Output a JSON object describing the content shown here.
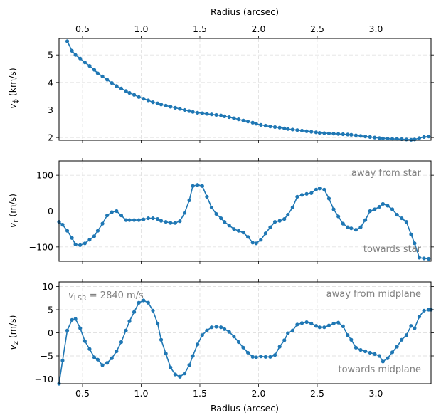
{
  "chart_data": [
    {
      "type": "line",
      "id": "vphi",
      "xlabel_top": "Radius (arcsec)",
      "ylabel_main": "v",
      "ylabel_sub": "ϕ",
      "ylabel_unit": " (km/s)",
      "xlim": [
        0.3,
        3.47
      ],
      "ylim": [
        1.9,
        5.6
      ],
      "xticks": [
        0.5,
        1.0,
        1.5,
        2.0,
        2.5,
        3.0
      ],
      "xtick_labels": [
        "0.5",
        "1.0",
        "1.5",
        "2.0",
        "2.5",
        "3.0"
      ],
      "yticks": [
        2,
        3,
        4,
        5
      ],
      "ytick_labels": [
        "2",
        "3",
        "4",
        "5"
      ],
      "grid": true,
      "color": "#1f77b4",
      "x": [
        0.37,
        0.41,
        0.44,
        0.48,
        0.52,
        0.56,
        0.6,
        0.63,
        0.67,
        0.71,
        0.75,
        0.79,
        0.83,
        0.87,
        0.9,
        0.94,
        0.98,
        1.02,
        1.06,
        1.1,
        1.14,
        1.17,
        1.21,
        1.25,
        1.29,
        1.33,
        1.37,
        1.41,
        1.44,
        1.48,
        1.52,
        1.56,
        1.6,
        1.64,
        1.68,
        1.71,
        1.75,
        1.79,
        1.83,
        1.87,
        1.91,
        1.95,
        1.98,
        2.02,
        2.06,
        2.1,
        2.14,
        2.18,
        2.22,
        2.25,
        2.29,
        2.33,
        2.37,
        2.41,
        2.45,
        2.49,
        2.52,
        2.56,
        2.6,
        2.64,
        2.68,
        2.72,
        2.76,
        2.79,
        2.83,
        2.87,
        2.91,
        2.95,
        2.99,
        3.03,
        3.06,
        3.1,
        3.14,
        3.18,
        3.22,
        3.26,
        3.3,
        3.33,
        3.37,
        3.41,
        3.45
      ],
      "y": [
        5.5,
        5.15,
        5.0,
        4.87,
        4.73,
        4.6,
        4.46,
        4.33,
        4.22,
        4.1,
        3.98,
        3.87,
        3.78,
        3.69,
        3.62,
        3.55,
        3.47,
        3.41,
        3.35,
        3.28,
        3.24,
        3.2,
        3.16,
        3.12,
        3.08,
        3.04,
        3.0,
        2.96,
        2.93,
        2.9,
        2.88,
        2.86,
        2.84,
        2.82,
        2.8,
        2.77,
        2.74,
        2.7,
        2.66,
        2.62,
        2.58,
        2.54,
        2.5,
        2.46,
        2.43,
        2.4,
        2.38,
        2.36,
        2.33,
        2.31,
        2.29,
        2.27,
        2.25,
        2.23,
        2.21,
        2.19,
        2.17,
        2.16,
        2.15,
        2.14,
        2.13,
        2.12,
        2.11,
        2.1,
        2.08,
        2.06,
        2.04,
        2.02,
        2.0,
        1.98,
        1.97,
        1.96,
        1.95,
        1.95,
        1.94,
        1.93,
        1.92,
        1.93,
        1.98,
        2.02,
        2.04
      ]
    },
    {
      "type": "line",
      "id": "vr",
      "ylabel_main": "v",
      "ylabel_sub": "r",
      "ylabel_unit": " (m/s)",
      "xlim": [
        0.3,
        3.47
      ],
      "ylim": [
        -140,
        140
      ],
      "xticks": [
        0.5,
        1.0,
        1.5,
        2.0,
        2.5,
        3.0
      ],
      "yticks": [
        -100,
        0,
        100
      ],
      "ytick_labels": [
        "−100",
        "0",
        "100"
      ],
      "grid": true,
      "color": "#1f77b4",
      "annotations": [
        {
          "text": "away from star",
          "pos": "top-right"
        },
        {
          "text": "towards star",
          "pos": "bottom-right"
        }
      ],
      "x": [
        0.3,
        0.33,
        0.37,
        0.41,
        0.44,
        0.48,
        0.52,
        0.56,
        0.6,
        0.63,
        0.67,
        0.71,
        0.75,
        0.79,
        0.83,
        0.87,
        0.9,
        0.94,
        0.98,
        1.02,
        1.06,
        1.1,
        1.14,
        1.17,
        1.21,
        1.25,
        1.29,
        1.33,
        1.37,
        1.41,
        1.44,
        1.48,
        1.52,
        1.56,
        1.6,
        1.64,
        1.68,
        1.71,
        1.75,
        1.79,
        1.83,
        1.87,
        1.91,
        1.95,
        1.98,
        2.02,
        2.06,
        2.1,
        2.14,
        2.18,
        2.22,
        2.25,
        2.29,
        2.33,
        2.37,
        2.41,
        2.45,
        2.49,
        2.52,
        2.56,
        2.6,
        2.64,
        2.68,
        2.72,
        2.76,
        2.79,
        2.83,
        2.87,
        2.91,
        2.95,
        2.99,
        3.03,
        3.06,
        3.1,
        3.14,
        3.18,
        3.22,
        3.26,
        3.3,
        3.33,
        3.37,
        3.41,
        3.45
      ],
      "y": [
        -30,
        -38,
        -55,
        -75,
        -93,
        -95,
        -90,
        -80,
        -70,
        -55,
        -35,
        -12,
        -3,
        0,
        -12,
        -25,
        -25,
        -25,
        -25,
        -23,
        -20,
        -20,
        -22,
        -27,
        -30,
        -33,
        -33,
        -28,
        -5,
        30,
        70,
        73,
        70,
        40,
        10,
        -8,
        -20,
        -30,
        -40,
        -50,
        -55,
        -60,
        -72,
        -88,
        -90,
        -80,
        -62,
        -45,
        -30,
        -27,
        -22,
        -10,
        10,
        40,
        45,
        48,
        50,
        60,
        63,
        60,
        35,
        5,
        -15,
        -35,
        -45,
        -48,
        -52,
        -45,
        -25,
        0,
        5,
        12,
        20,
        15,
        5,
        -10,
        -20,
        -30,
        -65,
        -90,
        -130,
        -132,
        -133
      ]
    },
    {
      "type": "line",
      "id": "vz",
      "xlabel_bottom": "Radius (arcsec)",
      "ylabel_main": "v",
      "ylabel_sub": "z",
      "ylabel_unit": " (m/s)",
      "xlim": [
        0.3,
        3.47
      ],
      "ylim": [
        -11,
        11
      ],
      "xticks": [
        0.5,
        1.0,
        1.5,
        2.0,
        2.5,
        3.0
      ],
      "xtick_labels": [
        "0.5",
        "1.0",
        "1.5",
        "2.0",
        "2.5",
        "3.0"
      ],
      "yticks": [
        -10,
        -5,
        0,
        5,
        10
      ],
      "ytick_labels": [
        "−10",
        "−5",
        "0",
        "5",
        "10"
      ],
      "grid": true,
      "color": "#1f77b4",
      "annotations": [
        {
          "text": "away from midplane",
          "pos": "top-right"
        },
        {
          "text": "towards midplane",
          "pos": "bottom-right"
        }
      ],
      "vlsr_label_main": "v",
      "vlsr_label_sub": "LSR",
      "vlsr_label_value": " =  2840 m/s",
      "x": [
        0.3,
        0.33,
        0.37,
        0.41,
        0.44,
        0.48,
        0.52,
        0.56,
        0.6,
        0.63,
        0.67,
        0.71,
        0.75,
        0.79,
        0.83,
        0.87,
        0.9,
        0.94,
        0.98,
        1.02,
        1.06,
        1.1,
        1.14,
        1.17,
        1.21,
        1.25,
        1.29,
        1.33,
        1.37,
        1.41,
        1.44,
        1.48,
        1.52,
        1.56,
        1.6,
        1.64,
        1.68,
        1.71,
        1.75,
        1.79,
        1.83,
        1.87,
        1.91,
        1.95,
        1.98,
        2.02,
        2.06,
        2.1,
        2.14,
        2.18,
        2.22,
        2.25,
        2.29,
        2.33,
        2.37,
        2.41,
        2.45,
        2.49,
        2.52,
        2.56,
        2.6,
        2.64,
        2.68,
        2.72,
        2.76,
        2.79,
        2.83,
        2.87,
        2.91,
        2.95,
        2.99,
        3.03,
        3.06,
        3.1,
        3.14,
        3.18,
        3.22,
        3.26,
        3.3,
        3.33,
        3.37,
        3.41,
        3.45,
        3.47
      ],
      "y": [
        -11,
        -6,
        0.5,
        2.8,
        3,
        1,
        -1.8,
        -3.5,
        -5.3,
        -5.8,
        -7,
        -6.5,
        -5.5,
        -4,
        -2,
        0.5,
        2.5,
        4.5,
        6.5,
        7,
        6.5,
        4.8,
        2,
        -1.5,
        -4.5,
        -7.5,
        -9,
        -9.5,
        -8.8,
        -7,
        -5,
        -2.5,
        -0.5,
        0.5,
        1.2,
        1.3,
        1.2,
        0.8,
        0.2,
        -0.8,
        -2,
        -3.2,
        -4.3,
        -5.2,
        -5.3,
        -5.1,
        -5.2,
        -5.2,
        -4.8,
        -3,
        -1.6,
        -0.1,
        0.5,
        1.8,
        2.1,
        2.3,
        2,
        1.5,
        1.2,
        1.2,
        1.6,
        2,
        2.2,
        1.4,
        -0.5,
        -1.5,
        -3.2,
        -3.7,
        -4,
        -4.3,
        -4.6,
        -5,
        -6.2,
        -5.5,
        -4.2,
        -3,
        -1.5,
        -0.5,
        1.5,
        1,
        3.5,
        4.8,
        5,
        5
      ]
    }
  ]
}
